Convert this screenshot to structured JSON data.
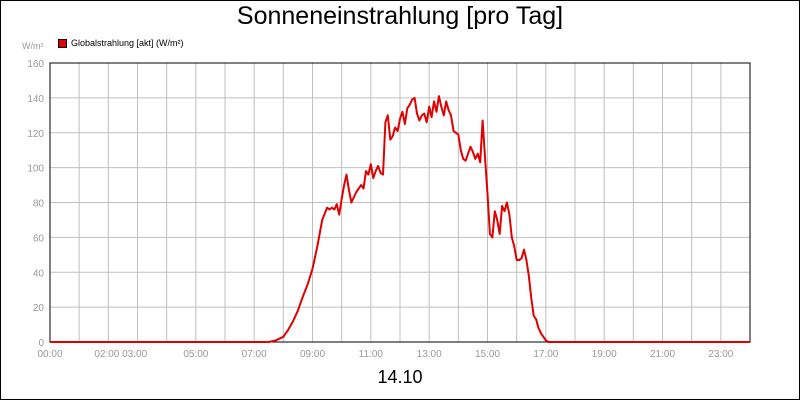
{
  "chart_data": {
    "type": "line",
    "title": "Sonneneinstrahlung [pro Tag]",
    "ylabel": "W/m²",
    "xlabel": "14.10",
    "ylim": [
      0,
      160
    ],
    "yticks": [
      0,
      20,
      40,
      60,
      80,
      100,
      120,
      140,
      160
    ],
    "xlim": [
      "00:00",
      "24:00"
    ],
    "xtick_labels": [
      "00:00",
      "02:00 03:00",
      "05:00",
      "07:00",
      "09:00",
      "11:00",
      "13:00",
      "15:00",
      "17:00",
      "19:00",
      "21:00",
      "23:00"
    ],
    "grid": true,
    "legend_position": "top-left",
    "colors": {
      "series": "#e00000",
      "grid": "#c0c0c0",
      "tick_text": "#999999"
    },
    "series": [
      {
        "name": "Globalstrahlung [akt] (W/m²)",
        "x": [
          "00:00",
          "07:00",
          "07:30",
          "07:45",
          "08:00",
          "08:10",
          "08:20",
          "08:30",
          "08:40",
          "08:50",
          "09:00",
          "09:10",
          "09:20",
          "09:30",
          "09:35",
          "09:40",
          "09:45",
          "09:50",
          "09:55",
          "10:00",
          "10:05",
          "10:10",
          "10:15",
          "10:20",
          "10:30",
          "10:40",
          "10:45",
          "10:50",
          "10:55",
          "11:00",
          "11:05",
          "11:10",
          "11:15",
          "11:20",
          "11:25",
          "11:30",
          "11:35",
          "11:40",
          "11:45",
          "11:50",
          "11:55",
          "12:00",
          "12:05",
          "12:10",
          "12:15",
          "12:20",
          "12:25",
          "12:30",
          "12:35",
          "12:40",
          "12:45",
          "12:50",
          "12:55",
          "13:00",
          "13:05",
          "13:10",
          "13:15",
          "13:20",
          "13:25",
          "13:30",
          "13:35",
          "13:40",
          "13:45",
          "13:50",
          "13:55",
          "14:00",
          "14:05",
          "14:10",
          "14:15",
          "14:20",
          "14:25",
          "14:30",
          "14:35",
          "14:40",
          "14:45",
          "14:50",
          "14:55",
          "15:00",
          "15:05",
          "15:10",
          "15:15",
          "15:20",
          "15:25",
          "15:30",
          "15:35",
          "15:40",
          "15:45",
          "15:50",
          "15:55",
          "16:00",
          "16:05",
          "16:10",
          "16:15",
          "16:20",
          "16:25",
          "16:30",
          "16:35",
          "16:40",
          "16:45",
          "16:50",
          "16:55",
          "17:00",
          "17:05",
          "17:10",
          "17:15",
          "17:20",
          "17:25",
          "17:30",
          "17:35",
          "17:40",
          "17:45",
          "17:50",
          "17:55",
          "18:00",
          "18:05",
          "18:15",
          "18:30",
          "18:45",
          "19:00",
          "24:00"
        ],
        "values": [
          0,
          0,
          0,
          1,
          3,
          7,
          12,
          18,
          26,
          33,
          42,
          55,
          70,
          77,
          76,
          77,
          76,
          79,
          73,
          82,
          90,
          96,
          87,
          80,
          86,
          90,
          88,
          98,
          96,
          102,
          94,
          98,
          101,
          97,
          96,
          126,
          130,
          116,
          118,
          123,
          121,
          128,
          132,
          125,
          134,
          136,
          139,
          140,
          131,
          127,
          130,
          131,
          126,
          135,
          129,
          138,
          132,
          141,
          135,
          130,
          138,
          133,
          130,
          121,
          120,
          119,
          110,
          105,
          104,
          108,
          112,
          109,
          105,
          108,
          103,
          127,
          105,
          85,
          62,
          60,
          75,
          70,
          62,
          78,
          75,
          80,
          73,
          60,
          55,
          47,
          47,
          48,
          53,
          47,
          38,
          25,
          15,
          13,
          8,
          5,
          3,
          1,
          0,
          0,
          0,
          0,
          0,
          0,
          0,
          0,
          0,
          0,
          0,
          0,
          0,
          0,
          0,
          0,
          0,
          0
        ]
      }
    ]
  }
}
